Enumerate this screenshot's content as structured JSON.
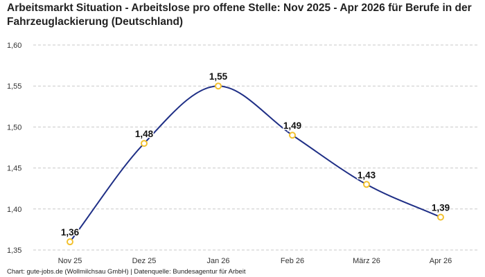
{
  "title": "Arbeitsmarkt Situation - Arbeitslose pro offene Stelle: Nov 2025 - Apr 2026 für Berufe in der Fahrzeuglackierung (Deutschland)",
  "footer": "Chart: gute-jobs.de (Wollmilchsau GmbH) | Datenquelle: Bundesagentur für Arbeit",
  "chart_data": {
    "type": "line",
    "title": "Arbeitsmarkt Situation - Arbeitslose pro offene Stelle: Nov 2025 - Apr 2026 für Berufe in der Fahrzeuglackierung (Deutschland)",
    "categories": [
      "Nov 25",
      "Dez 25",
      "Jan 26",
      "Feb 26",
      "März 26",
      "Apr 26"
    ],
    "values": [
      1.36,
      1.48,
      1.55,
      1.49,
      1.43,
      1.39
    ],
    "data_labels": [
      "1,36",
      "1,48",
      "1,55",
      "1,49",
      "1,43",
      "1,39"
    ],
    "y_ticks": [
      1.35,
      1.4,
      1.45,
      1.5,
      1.55,
      1.6
    ],
    "y_tick_labels": [
      "1,35",
      "1,40",
      "1,45",
      "1,50",
      "1,55",
      "1,60"
    ],
    "ylim": [
      1.35,
      1.6
    ],
    "xlabel": "",
    "ylabel": "",
    "grid": "horizontal dashed",
    "legend": "none",
    "line_color": "#1f2f86",
    "marker_color": "#f2c12e"
  }
}
